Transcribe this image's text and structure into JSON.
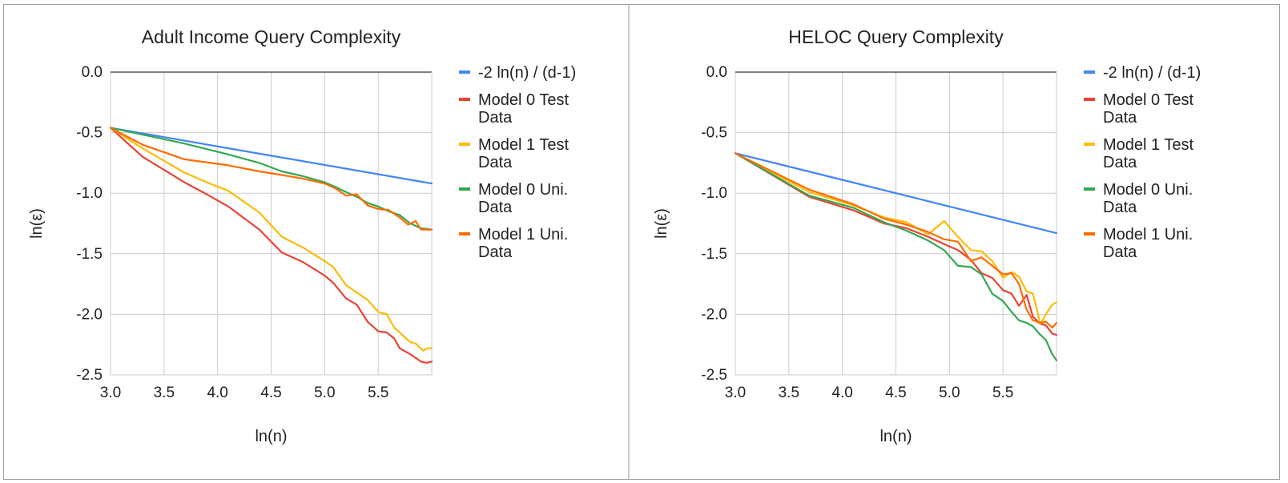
{
  "chart_data": [
    {
      "type": "line",
      "title": "Adult Income Query Complexity",
      "xlabel": "ln(n)",
      "ylabel": "ln(ε)",
      "xlim": [
        3.0,
        6.0
      ],
      "ylim": [
        -2.5,
        0.0
      ],
      "xticks": [
        "3.0",
        "3.5",
        "4.0",
        "4.5",
        "5.0",
        "5.5"
      ],
      "xtick_values": [
        3.0,
        3.5,
        4.0,
        4.5,
        5.0,
        5.5
      ],
      "yticks": [
        "0.0",
        "-0.5",
        "-1.0",
        "-1.5",
        "-2.0",
        "-2.5"
      ],
      "ytick_values": [
        0.0,
        -0.5,
        -1.0,
        -1.5,
        -2.0,
        -2.5
      ],
      "grid": true,
      "legend_position": "right",
      "series": [
        {
          "name": "-2 ln(n) / (d-1)",
          "legend": [
            "-2 ln(n) / (d-1)"
          ],
          "color": "#4285F4",
          "x": [
            3.0,
            6.0
          ],
          "y": [
            -0.46,
            -0.92
          ]
        },
        {
          "name": "Model 0 Test Data",
          "legend": [
            "Model 0 Test",
            "Data"
          ],
          "color": "#EA4335",
          "x": [
            3.0,
            3.3,
            3.69,
            3.9,
            4.1,
            4.39,
            4.6,
            4.8,
            5.0,
            5.08,
            5.2,
            5.3,
            5.4,
            5.5,
            5.58,
            5.65,
            5.7,
            5.8,
            5.9,
            5.95,
            6.0
          ],
          "y": [
            -0.46,
            -0.7,
            -0.91,
            -1.01,
            -1.11,
            -1.3,
            -1.49,
            -1.57,
            -1.68,
            -1.74,
            -1.87,
            -1.92,
            -2.06,
            -2.14,
            -2.15,
            -2.2,
            -2.28,
            -2.33,
            -2.39,
            -2.4,
            -2.39
          ]
        },
        {
          "name": "Model 1 Test Data",
          "legend": [
            "Model 1 Test",
            "Data"
          ],
          "color": "#FBBC04",
          "x": [
            3.0,
            3.3,
            3.69,
            3.9,
            4.1,
            4.39,
            4.6,
            4.8,
            5.0,
            5.08,
            5.2,
            5.3,
            5.4,
            5.5,
            5.58,
            5.65,
            5.7,
            5.8,
            5.85,
            5.92,
            5.96,
            6.0
          ],
          "y": [
            -0.46,
            -0.63,
            -0.83,
            -0.91,
            -0.98,
            -1.16,
            -1.36,
            -1.45,
            -1.56,
            -1.61,
            -1.76,
            -1.82,
            -1.88,
            -1.98,
            -2.0,
            -2.11,
            -2.15,
            -2.23,
            -2.24,
            -2.3,
            -2.28,
            -2.28
          ]
        },
        {
          "name": "Model 0 Uni. Data",
          "legend": [
            "Model 0 Uni.",
            "Data"
          ],
          "color": "#34A853",
          "x": [
            3.0,
            3.69,
            4.1,
            4.39,
            4.6,
            4.8,
            5.0,
            5.08,
            5.2,
            5.3,
            5.4,
            5.5,
            5.6,
            5.7,
            5.8,
            5.9,
            6.0
          ],
          "y": [
            -0.46,
            -0.59,
            -0.68,
            -0.75,
            -0.82,
            -0.86,
            -0.91,
            -0.94,
            -0.99,
            -1.03,
            -1.08,
            -1.11,
            -1.15,
            -1.18,
            -1.25,
            -1.29,
            -1.3
          ]
        },
        {
          "name": "Model 1 Uni. Data",
          "legend": [
            "Model 1 Uni.",
            "Data"
          ],
          "color": "#FF6D01",
          "x": [
            3.0,
            3.3,
            3.69,
            4.1,
            4.39,
            4.6,
            4.8,
            5.0,
            5.1,
            5.2,
            5.3,
            5.4,
            5.5,
            5.6,
            5.7,
            5.78,
            5.85,
            5.9,
            5.95,
            6.0
          ],
          "y": [
            -0.46,
            -0.6,
            -0.72,
            -0.77,
            -0.82,
            -0.85,
            -0.88,
            -0.92,
            -0.96,
            -1.02,
            -1.01,
            -1.1,
            -1.13,
            -1.14,
            -1.2,
            -1.26,
            -1.23,
            -1.3,
            -1.3,
            -1.3
          ]
        }
      ]
    },
    {
      "type": "line",
      "title": "HELOC Query Complexity",
      "xlabel": "ln(n)",
      "ylabel": "ln(ε)",
      "xlim": [
        3.0,
        6.0
      ],
      "ylim": [
        -2.5,
        0.0
      ],
      "xticks": [
        "3.0",
        "3.5",
        "4.0",
        "4.5",
        "5.0",
        "5.5"
      ],
      "xtick_values": [
        3.0,
        3.5,
        4.0,
        4.5,
        5.0,
        5.5
      ],
      "yticks": [
        "0.0",
        "-0.5",
        "-1.0",
        "-1.5",
        "-2.0",
        "-2.5"
      ],
      "ytick_values": [
        0.0,
        -0.5,
        -1.0,
        -1.5,
        -2.0,
        -2.5
      ],
      "grid": true,
      "legend_position": "right",
      "series": [
        {
          "name": "-2 ln(n) / (d-1)",
          "legend": [
            "-2 ln(n) / (d-1)"
          ],
          "color": "#4285F4",
          "x": [
            3.0,
            6.0
          ],
          "y": [
            -0.67,
            -1.33
          ]
        },
        {
          "name": "Model 0 Test Data",
          "legend": [
            "Model 0 Test",
            "Data"
          ],
          "color": "#EA4335",
          "x": [
            3.0,
            3.69,
            4.1,
            4.39,
            4.6,
            4.8,
            4.95,
            5.08,
            5.2,
            5.3,
            5.4,
            5.5,
            5.58,
            5.65,
            5.72,
            5.78,
            5.85,
            5.9,
            5.96,
            6.0
          ],
          "y": [
            -0.67,
            -1.03,
            -1.14,
            -1.25,
            -1.29,
            -1.36,
            -1.42,
            -1.47,
            -1.55,
            -1.66,
            -1.7,
            -1.8,
            -1.83,
            -1.93,
            -1.84,
            -2.02,
            -2.08,
            -2.09,
            -2.16,
            -2.17
          ]
        },
        {
          "name": "Model 1 Test Data",
          "legend": [
            "Model 1 Test",
            "Data"
          ],
          "color": "#FBBC04",
          "x": [
            3.0,
            3.69,
            4.1,
            4.39,
            4.6,
            4.8,
            4.95,
            5.08,
            5.2,
            5.3,
            5.4,
            5.5,
            5.58,
            5.65,
            5.72,
            5.78,
            5.85,
            5.9,
            5.96,
            6.0
          ],
          "y": [
            -0.67,
            -0.99,
            -1.1,
            -1.2,
            -1.24,
            -1.34,
            -1.23,
            -1.36,
            -1.47,
            -1.48,
            -1.56,
            -1.7,
            -1.65,
            -1.69,
            -1.81,
            -1.83,
            -2.08,
            -2.0,
            -1.92,
            -1.9
          ]
        },
        {
          "name": "Model 0 Uni. Data",
          "legend": [
            "Model 0 Uni.",
            "Data"
          ],
          "color": "#34A853",
          "x": [
            3.0,
            3.69,
            4.1,
            4.39,
            4.6,
            4.8,
            4.95,
            5.08,
            5.2,
            5.3,
            5.4,
            5.5,
            5.58,
            5.65,
            5.72,
            5.78,
            5.85,
            5.9,
            5.96,
            6.0
          ],
          "y": [
            -0.67,
            -1.02,
            -1.12,
            -1.24,
            -1.31,
            -1.39,
            -1.47,
            -1.6,
            -1.61,
            -1.67,
            -1.83,
            -1.89,
            -1.98,
            -2.05,
            -2.07,
            -2.1,
            -2.17,
            -2.21,
            -2.33,
            -2.38
          ]
        },
        {
          "name": "Model 1 Uni. Data",
          "legend": [
            "Model 1 Uni.",
            "Data"
          ],
          "color": "#FF6D01",
          "x": [
            3.0,
            3.69,
            4.1,
            4.39,
            4.6,
            4.8,
            4.95,
            5.08,
            5.2,
            5.3,
            5.4,
            5.5,
            5.58,
            5.65,
            5.72,
            5.78,
            5.85,
            5.9,
            5.96,
            6.0
          ],
          "y": [
            -0.67,
            -0.97,
            -1.09,
            -1.21,
            -1.26,
            -1.32,
            -1.38,
            -1.4,
            -1.56,
            -1.53,
            -1.6,
            -1.67,
            -1.66,
            -1.75,
            -1.96,
            -2.05,
            -2.07,
            -2.06,
            -2.11,
            -2.07
          ]
        }
      ]
    }
  ]
}
